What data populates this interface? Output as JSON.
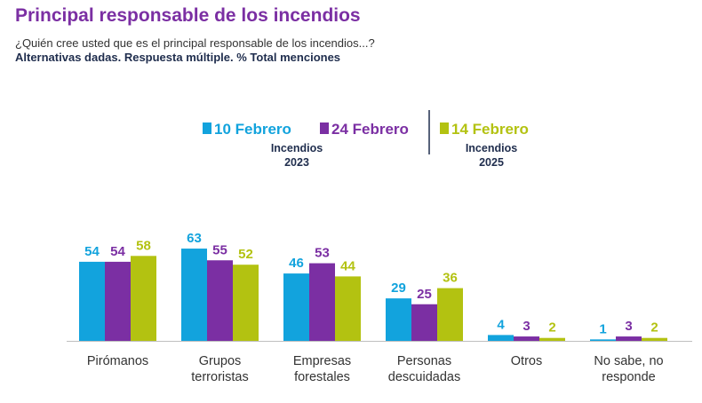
{
  "header": {
    "title": "Principal responsable de los incendios",
    "question": "¿Quién cree usted que es el principal responsable de los incendios...?",
    "note": "Alternativas dadas. Respuesta múltiple. % Total menciones"
  },
  "legend": {
    "groups": [
      {
        "lines": [
          "Incendios",
          "2023"
        ]
      },
      {
        "lines": [
          "Incendios",
          "2025"
        ]
      }
    ]
  },
  "colors": {
    "feb10": "#12a3dd",
    "feb24": "#7b2fa3",
    "feb14": "#b3c211",
    "title": "#7b2fa3",
    "dark_text": "#1f2d4d"
  },
  "chart_data": {
    "type": "bar",
    "title": "Principal responsable de los incendios",
    "categories": [
      [
        "Pirómanos"
      ],
      [
        "Grupos",
        "terroristas"
      ],
      [
        "Empresas",
        "forestales"
      ],
      [
        "Personas",
        "descuidadas"
      ],
      [
        "Otros"
      ],
      [
        "No sabe, no",
        "responde"
      ]
    ],
    "series": [
      {
        "name": "10 Febrero",
        "color": "#12a3dd",
        "values": [
          54,
          63,
          46,
          29,
          4,
          1
        ]
      },
      {
        "name": "24 Febrero",
        "color": "#7b2fa3",
        "values": [
          54,
          55,
          53,
          25,
          3,
          3
        ]
      },
      {
        "name": "14 Febrero",
        "color": "#b3c211",
        "values": [
          58,
          52,
          44,
          36,
          2,
          2
        ]
      }
    ],
    "data_labels": true,
    "legend_position": "top",
    "grid": false,
    "ylim": [
      0,
      70
    ]
  }
}
